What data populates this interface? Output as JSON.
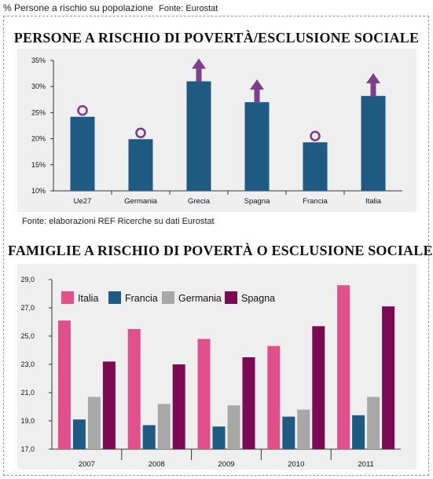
{
  "header": {
    "label": "% Persone a rischio su popolazione",
    "source": "Fonte: Eurostat"
  },
  "chart1_note": "Fonte: elaborazioni REF Ricerche su dati Eurostat",
  "colors": {
    "bar1": "#1e5a82",
    "marker": "#7b3f8c",
    "italia": "#e0508a",
    "francia": "#1e5a82",
    "germania": "#a8a8a8",
    "spagna": "#7a0a52"
  },
  "chart_data": [
    {
      "type": "bar",
      "title": "PERSONE A RISCHIO DI POVERTÀ/ESCLUSIONE SOCIALE",
      "categories": [
        "Ue27",
        "Germania",
        "Grecia",
        "Spagna",
        "Francia",
        "Italia"
      ],
      "values": [
        24.2,
        19.9,
        31.0,
        27.0,
        19.3,
        28.2
      ],
      "markers": [
        "circle",
        "circle",
        "arrow-up",
        "arrow-up",
        "circle",
        "arrow-up"
      ],
      "yticks": [
        "10%",
        "15%",
        "20%",
        "25%",
        "30%",
        "35%"
      ],
      "ylim": [
        10,
        35
      ],
      "grid": false
    },
    {
      "type": "bar",
      "title": "FAMIGLIE A RISCHIO DI POVERTÀ O ESCLUSIONE SOCIALE",
      "categories": [
        "2007",
        "2008",
        "2009",
        "2010",
        "2011"
      ],
      "series": [
        {
          "name": "Italia",
          "values": [
            26.1,
            25.5,
            24.8,
            24.3,
            28.6
          ]
        },
        {
          "name": "Francia",
          "values": [
            19.1,
            18.7,
            18.6,
            19.3,
            19.4
          ]
        },
        {
          "name": "Germania",
          "values": [
            20.7,
            20.2,
            20.1,
            19.8,
            20.7
          ]
        },
        {
          "name": "Spagna",
          "values": [
            23.2,
            23.0,
            23.5,
            25.7,
            27.1
          ]
        }
      ],
      "yticks": [
        "17,0",
        "19,0",
        "21,0",
        "23,0",
        "25,0",
        "27,0",
        "29,0"
      ],
      "ylim": [
        17,
        29
      ],
      "legend": "top-left",
      "grid": false
    }
  ]
}
